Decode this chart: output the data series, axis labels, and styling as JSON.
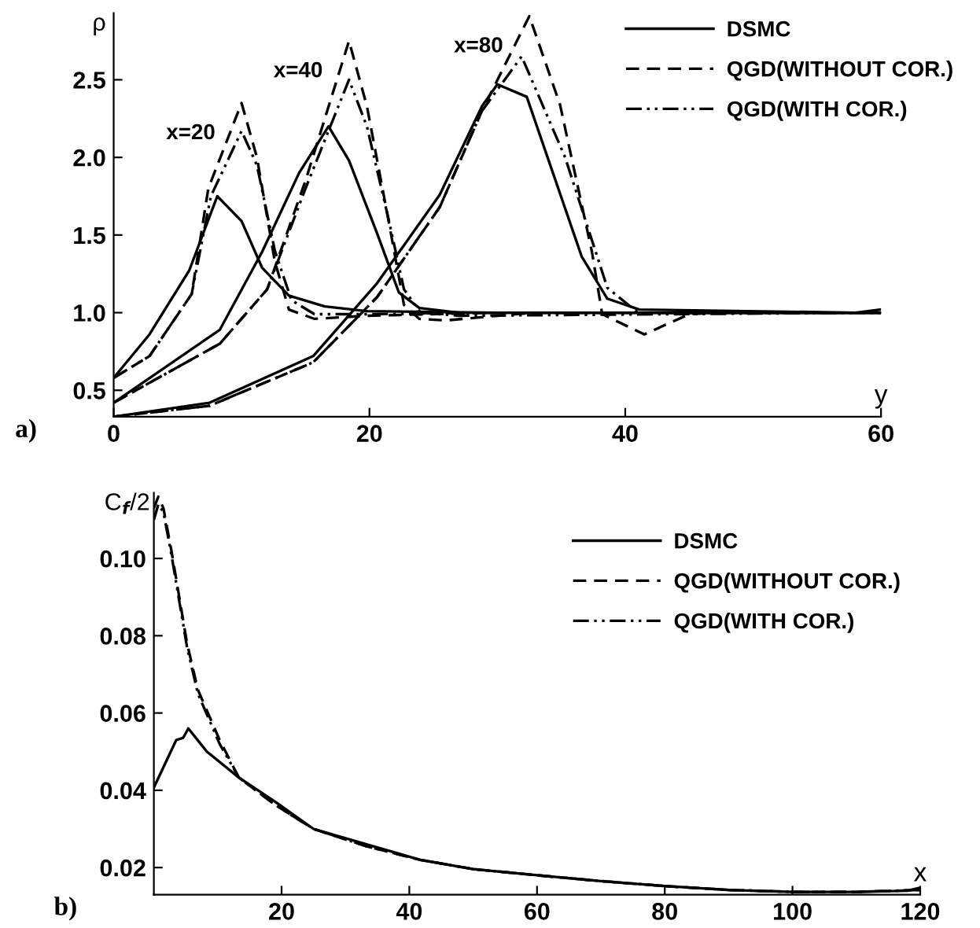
{
  "chart_data": [
    {
      "type": "line",
      "xlabel": "y",
      "ylabel": "ρ",
      "xlim": [
        0,
        60
      ],
      "ylim": [
        0.33,
        2.93
      ],
      "xticks": [
        0,
        20,
        40,
        60
      ],
      "yticks": [
        0.5,
        {
          "value": 1,
          "label": "1.0"
        },
        1.5,
        {
          "value": 2,
          "label": "2.0"
        },
        2.5
      ],
      "grid": false,
      "legend": "top right",
      "annotations": [
        {
          "text": "x=20",
          "x": 10,
          "y": 2.35
        },
        {
          "text": "x=40",
          "x": 18.4,
          "y": 2.75
        },
        {
          "text": "x=80",
          "x": 32.5,
          "y": 2.91
        },
        "a)"
      ],
      "series": [
        {
          "name": "DSMC",
          "color": "#000000",
          "line_style": "solid",
          "x": [
            0,
            2.8,
            5.9,
            8.1,
            10,
            11.6,
            13.7,
            16.5,
            19.8,
            30,
            60
          ],
          "values": [
            0.58,
            0.86,
            1.27,
            1.75,
            1.59,
            1.29,
            1.11,
            1.04,
            1.01,
            1.0,
            1.0
          ]
        },
        {
          "name": "QGD(WITHOUT COR.)",
          "color": "#000000",
          "line_style": "dashed",
          "x": [
            0,
            2.8,
            6.1,
            7.4,
            10,
            11.2,
            12.6,
            13.7,
            15.7,
            19.8,
            30,
            60
          ],
          "values": [
            0.58,
            0.72,
            1.12,
            1.8,
            2.35,
            2.0,
            1.33,
            1.02,
            0.96,
            0.98,
            1.0,
            1.0
          ]
        },
        {
          "name": "QGD(WITH COR.)",
          "color": "#000000",
          "line_style": "dashdot",
          "x": [
            0,
            2.8,
            6.1,
            7.6,
            10,
            11.2,
            12.6,
            13.9,
            15.7,
            19.8,
            30,
            60
          ],
          "values": [
            0.58,
            0.72,
            1.12,
            1.75,
            2.17,
            1.95,
            1.4,
            1.08,
            0.99,
            0.99,
            1.0,
            1.0
          ]
        },
        {
          "color": "#000000",
          "line_style": "solid",
          "x": [
            0,
            8.3,
            11.6,
            14.5,
            16.8,
            18.4,
            20.6,
            22.3,
            23.9,
            27,
            60
          ],
          "values": [
            0.42,
            0.89,
            1.39,
            1.9,
            2.2,
            1.98,
            1.51,
            1.13,
            1.03,
            1.0,
            1.0
          ]
        },
        {
          "color": "#000000",
          "line_style": "dashed",
          "x": [
            0,
            8.3,
            12,
            15,
            18.4,
            19.8,
            21.5,
            22.7,
            23.9,
            26,
            30,
            33,
            60
          ],
          "values": [
            0.42,
            0.8,
            1.15,
            1.85,
            2.75,
            2.33,
            1.59,
            1.05,
            0.96,
            0.95,
            0.98,
            1.0,
            1.0
          ]
        },
        {
          "color": "#000000",
          "line_style": "dashdot",
          "x": [
            0,
            8.3,
            12,
            15,
            18.4,
            19.8,
            21.5,
            22.7,
            24,
            27,
            60
          ],
          "values": [
            0.42,
            0.8,
            1.15,
            1.8,
            2.5,
            2.2,
            1.6,
            1.15,
            1.0,
            0.98,
            1.0
          ]
        },
        {
          "color": "#000000",
          "line_style": "solid",
          "x": [
            0,
            7.5,
            15.6,
            20.6,
            25.5,
            28.8,
            30,
            32.3,
            36.6,
            38.6,
            41.1,
            58,
            60
          ],
          "values": [
            0.33,
            0.42,
            0.72,
            1.19,
            1.76,
            2.33,
            2.47,
            2.39,
            1.36,
            1.09,
            1.02,
            1.0,
            1.02
          ]
        },
        {
          "color": "#000000",
          "line_style": "dashed",
          "x": [
            0,
            7.5,
            15.6,
            20.6,
            25.5,
            28.8,
            32.5,
            34.9,
            37.4,
            38.2,
            41.5,
            43.1,
            45,
            47,
            60
          ],
          "values": [
            0.33,
            0.4,
            0.68,
            1.1,
            1.68,
            2.3,
            2.91,
            2.34,
            1.39,
            0.99,
            0.86,
            0.92,
            0.99,
            1.0,
            1.0
          ]
        },
        {
          "color": "#000000",
          "line_style": "dashdot",
          "x": [
            0,
            7.5,
            15.6,
            20.6,
            25.5,
            28.8,
            31.9,
            35.3,
            38.6,
            41,
            60
          ],
          "values": [
            0.33,
            0.4,
            0.68,
            1.1,
            1.68,
            2.3,
            2.65,
            2.0,
            1.16,
            1.0,
            1.0
          ]
        }
      ]
    },
    {
      "type": "line",
      "xlabel": "x",
      "ylabel": "C$_{f}$/2",
      "xlim": [
        0,
        120
      ],
      "ylim": [
        0.013,
        0.117
      ],
      "xticks": [
        20,
        40,
        60,
        80,
        100,
        120
      ],
      "yticks": [
        {
          "value": 0.02,
          "label": "0.02"
        },
        {
          "value": 0.04,
          "label": "0.04"
        },
        {
          "value": 0.06,
          "label": "0.06"
        },
        {
          "value": 0.08,
          "label": "0.08"
        },
        {
          "value": 0.1,
          "label": "0.10"
        }
      ],
      "grid": false,
      "legend": "top right",
      "annotations": [
        "b)"
      ],
      "series": [
        {
          "name": "DSMC",
          "color": "#000000",
          "line_style": "solid",
          "x": [
            0,
            3.5,
            4.6,
            5.4,
            8.3,
            13.3,
            19.2,
            25,
            33.3,
            41.7,
            50,
            60,
            70,
            80,
            90,
            100,
            110,
            118,
            120
          ],
          "values": [
            0.0407,
            0.053,
            0.0536,
            0.056,
            0.05,
            0.0433,
            0.0368,
            0.03,
            0.026,
            0.022,
            0.0196,
            0.018,
            0.0165,
            0.0152,
            0.0142,
            0.0137,
            0.0137,
            0.014,
            0.0148
          ]
        },
        {
          "name": "QGD(WITHOUT COR.)",
          "color": "#000000",
          "line_style": "dashed",
          "x": [
            0,
            0.7,
            1.5,
            2.75,
            5.2,
            6.9,
            10.3,
            13.3,
            19.2,
            25,
            33.3,
            41.7,
            50,
            60,
            70,
            80,
            90,
            100,
            110,
            120
          ],
          "values": [
            0.113,
            0.116,
            0.113,
            0.102,
            0.078,
            0.066,
            0.053,
            0.0433,
            0.036,
            0.03,
            0.0255,
            0.022,
            0.0196,
            0.018,
            0.0165,
            0.0152,
            0.0142,
            0.0137,
            0.0137,
            0.0142
          ]
        },
        {
          "name": "QGD(WITH COR.)",
          "color": "#000000",
          "line_style": "dashdot",
          "x": [
            0,
            0.7,
            1.5,
            2.75,
            5.2,
            6.9,
            10.3,
            13.3,
            19.2,
            25,
            33.3,
            41.7,
            50,
            60,
            70,
            80,
            90,
            100,
            110,
            120
          ],
          "values": [
            0.11,
            0.114,
            0.112,
            0.101,
            0.077,
            0.065,
            0.052,
            0.0433,
            0.036,
            0.03,
            0.0255,
            0.022,
            0.0196,
            0.018,
            0.0165,
            0.0152,
            0.0142,
            0.0137,
            0.0137,
            0.0142
          ]
        }
      ]
    }
  ]
}
